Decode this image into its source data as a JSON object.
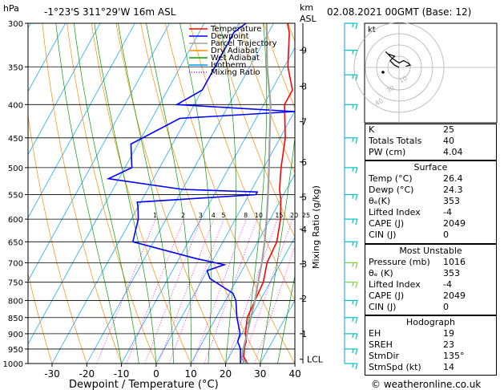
{
  "header": {
    "location": "-1°23'S  311°29'W  16m  ASL",
    "date": "02.08.2021  00GMT  (Base: 12)",
    "hpa_unit": "hPa",
    "km_unit": "km",
    "asl_unit": "ASL",
    "kt_label": "kt",
    "footer": "© weatheronline.co.uk"
  },
  "legend": [
    {
      "label": "Temperature",
      "color": "#ff0000",
      "dash": ""
    },
    {
      "label": "Dewpoint",
      "color": "#0000ff",
      "dash": ""
    },
    {
      "label": "Parcel Trajectory",
      "color": "#a0a0a0",
      "dash": ""
    },
    {
      "label": "Dry Adiabat",
      "color": "#ff8c00",
      "dash": ""
    },
    {
      "label": "Wet Adiabat",
      "color": "#00a000",
      "dash": ""
    },
    {
      "label": "Isotherm",
      "color": "#00a0ff",
      "dash": ""
    },
    {
      "label": "Mixing Ratio",
      "color": "#ff00ff",
      "dash": "1,2"
    }
  ],
  "chart_data": {
    "type": "line",
    "title": "",
    "xlabel": "Dewpoint / Temperature (°C)",
    "ylabel": "hPa",
    "y2label": "Mixing Ratio (g/kg)",
    "xlim": [
      -35,
      40
    ],
    "x_ticks": [
      -30,
      -20,
      -10,
      0,
      10,
      20,
      30,
      40
    ],
    "pressure_levels": [
      300,
      350,
      400,
      450,
      500,
      550,
      600,
      650,
      700,
      750,
      800,
      850,
      900,
      950,
      1000
    ],
    "y_scale": "log",
    "km_ticks": [
      {
        "km": "1",
        "p": 900
      },
      {
        "km": "2",
        "p": 795
      },
      {
        "km": "3",
        "p": 703
      },
      {
        "km": "4",
        "p": 622
      },
      {
        "km": "5",
        "p": 555
      },
      {
        "km": "6",
        "p": 490
      },
      {
        "km": "7",
        "p": 425
      },
      {
        "km": "8",
        "p": 375
      },
      {
        "km": "9",
        "p": 330
      }
    ],
    "lcl": {
      "label": "LCL",
      "p": 985
    },
    "mixing_ratio_labels": [
      "1",
      "2",
      "3",
      "4",
      "5",
      "8",
      "10",
      "15",
      "20",
      "25"
    ],
    "series": [
      {
        "name": "Temperature",
        "color": "#ff0000",
        "points": [
          [
            26.4,
            1000
          ],
          [
            24,
            975
          ],
          [
            23,
            950
          ],
          [
            22.5,
            925
          ],
          [
            21,
            900
          ],
          [
            20,
            875
          ],
          [
            19,
            850
          ],
          [
            18.5,
            800
          ],
          [
            18,
            750
          ],
          [
            16,
            700
          ],
          [
            15.5,
            650
          ],
          [
            13,
            600
          ],
          [
            10,
            560
          ],
          [
            8,
            540
          ],
          [
            5,
            500
          ],
          [
            1.5,
            450
          ],
          [
            -4,
            400
          ],
          [
            -4,
            380
          ],
          [
            -9,
            350
          ],
          [
            -14,
            310
          ],
          [
            -16,
            300
          ]
        ]
      },
      {
        "name": "Dewpoint",
        "color": "#0000ff",
        "points": [
          [
            24.3,
            1000
          ],
          [
            22,
            950
          ],
          [
            20,
            925
          ],
          [
            19.5,
            900
          ],
          [
            16,
            850
          ],
          [
            13,
            800
          ],
          [
            11,
            780
          ],
          [
            2,
            740
          ],
          [
            0,
            720
          ],
          [
            4,
            705
          ],
          [
            -5,
            690
          ],
          [
            -26,
            650
          ],
          [
            -28,
            600
          ],
          [
            -30,
            575
          ],
          [
            -31,
            565
          ],
          [
            -20,
            560
          ],
          [
            2,
            550
          ],
          [
            2,
            545
          ],
          [
            -20,
            540
          ],
          [
            -43,
            520
          ],
          [
            -38,
            500
          ],
          [
            -42,
            460
          ],
          [
            -32,
            420
          ],
          [
            0,
            410
          ],
          [
            -35,
            400
          ],
          [
            -30,
            380
          ],
          [
            -30,
            330
          ],
          [
            -30,
            310
          ],
          [
            -28,
            300
          ]
        ]
      },
      {
        "name": "Parcel Trajectory",
        "color": "#a0a0a0",
        "points": [
          [
            26.4,
            1000
          ],
          [
            24,
            985
          ],
          [
            22.8,
            950
          ],
          [
            21.5,
            900
          ],
          [
            20,
            850
          ],
          [
            18.5,
            800
          ],
          [
            16.5,
            750
          ],
          [
            14.5,
            700
          ],
          [
            12,
            650
          ],
          [
            9,
            600
          ],
          [
            5.5,
            550
          ],
          [
            1.5,
            500
          ],
          [
            -3,
            450
          ],
          [
            -8,
            400
          ],
          [
            -15,
            350
          ],
          [
            -22,
            300
          ]
        ]
      }
    ]
  },
  "hodograph": {
    "ring_labels": [
      "40",
      "30",
      "10"
    ],
    "points_kt": [
      [
        0,
        0
      ],
      [
        -4,
        2
      ],
      [
        -8,
        6
      ],
      [
        -4,
        10
      ],
      [
        -10,
        12
      ],
      [
        -12,
        14
      ],
      [
        -6,
        8
      ],
      [
        0,
        4
      ],
      [
        4,
        6
      ],
      [
        8,
        4
      ],
      [
        10,
        2
      ],
      [
        6,
        1
      ]
    ]
  },
  "wind_barbs": [
    {
      "p": 300,
      "color": "#00c0c0"
    },
    {
      "p": 330,
      "color": "#00c0c0"
    },
    {
      "p": 360,
      "color": "#00c0c0"
    },
    {
      "p": 400,
      "color": "#00c0c0"
    },
    {
      "p": 450,
      "color": "#00c0c0"
    },
    {
      "p": 500,
      "color": "#00c0c0"
    },
    {
      "p": 550,
      "color": "#00c0c0"
    },
    {
      "p": 600,
      "color": "#00c0c0"
    },
    {
      "p": 650,
      "color": "#00c0c0"
    },
    {
      "p": 700,
      "color": "#80d040"
    },
    {
      "p": 750,
      "color": "#80d040"
    },
    {
      "p": 800,
      "color": "#00c0c0"
    },
    {
      "p": 850,
      "color": "#00c0c0"
    },
    {
      "p": 900,
      "color": "#00c0c0"
    },
    {
      "p": 950,
      "color": "#00c0c0"
    },
    {
      "p": 1000,
      "color": "#00c0c0"
    }
  ],
  "indices": [
    {
      "label": "K",
      "value": "25"
    },
    {
      "label": "Totals Totals",
      "value": "40"
    },
    {
      "label": "PW (cm)",
      "value": "4.04"
    }
  ],
  "surface": {
    "title": "Surface",
    "rows": [
      {
        "label": "Temp (°C)",
        "value": "26.4"
      },
      {
        "label": "Dewp (°C)",
        "value": "24.3"
      },
      {
        "label": "θₑ(K)",
        "value": "353"
      },
      {
        "label": "Lifted Index",
        "value": "-4"
      },
      {
        "label": "CAPE (J)",
        "value": "2049"
      },
      {
        "label": "CIN (J)",
        "value": "0"
      }
    ]
  },
  "unstable": {
    "title": "Most Unstable",
    "rows": [
      {
        "label": "Pressure (mb)",
        "value": "1016"
      },
      {
        "label": "θₑ (K)",
        "value": "353"
      },
      {
        "label": "Lifted Index",
        "value": "-4"
      },
      {
        "label": "CAPE (J)",
        "value": "2049"
      },
      {
        "label": "CIN (J)",
        "value": "0"
      }
    ]
  },
  "hodo_table": {
    "title": "Hodograph",
    "rows": [
      {
        "label": "EH",
        "value": "19"
      },
      {
        "label": "SREH",
        "value": "23"
      },
      {
        "label": "StmDir",
        "value": "135°"
      },
      {
        "label": "StmSpd (kt)",
        "value": "14"
      }
    ]
  }
}
